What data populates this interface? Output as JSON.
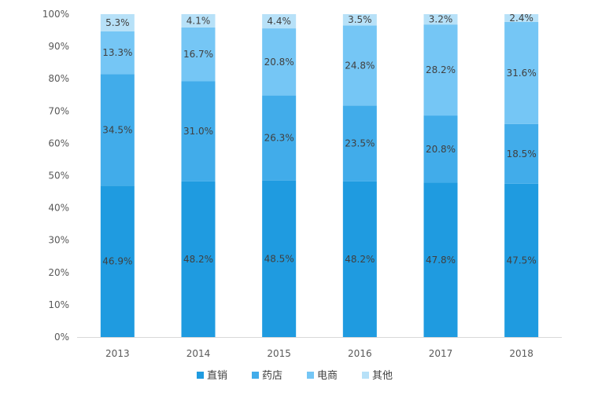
{
  "chart_data": {
    "type": "bar",
    "stacked": true,
    "percent_stacked": true,
    "categories": [
      "2013",
      "2014",
      "2015",
      "2016",
      "2017",
      "2018"
    ],
    "series": [
      {
        "name": "直销",
        "values": [
          46.9,
          48.2,
          48.5,
          48.2,
          47.8,
          47.5
        ],
        "color": "#1f9be0"
      },
      {
        "name": "药店",
        "values": [
          34.5,
          31.0,
          26.3,
          23.5,
          20.8,
          18.5
        ],
        "color": "#41acea"
      },
      {
        "name": "电商",
        "values": [
          13.3,
          16.7,
          20.8,
          24.8,
          28.2,
          31.6
        ],
        "color": "#75c6f5"
      },
      {
        "name": "其他",
        "values": [
          5.3,
          4.1,
          4.4,
          3.5,
          3.2,
          2.4
        ],
        "color": "#b7e1f8"
      }
    ],
    "data_labels": [
      [
        "46.9%",
        "48.2%",
        "48.5%",
        "48.2%",
        "47.8%",
        "47.5%"
      ],
      [
        "34.5%",
        "31.0%",
        "26.3%",
        "23.5%",
        "20.8%",
        "18.5%"
      ],
      [
        "13.3%",
        "16.7%",
        "20.8%",
        "24.8%",
        "28.2%",
        "31.6%"
      ],
      [
        "5.3%",
        "4.1%",
        "4.4%",
        "3.5%",
        "3.2%",
        "2.4%"
      ]
    ],
    "y_ticks": [
      "0%",
      "10%",
      "20%",
      "30%",
      "40%",
      "50%",
      "60%",
      "70%",
      "80%",
      "90%",
      "100%"
    ],
    "ylim": [
      0,
      100
    ],
    "title": "",
    "xlabel": "",
    "ylabel": "",
    "grid": false,
    "legend_position": "bottom"
  },
  "colors": {
    "axis": "#d9d9d9",
    "text": "#595959",
    "label": "#404040"
  }
}
